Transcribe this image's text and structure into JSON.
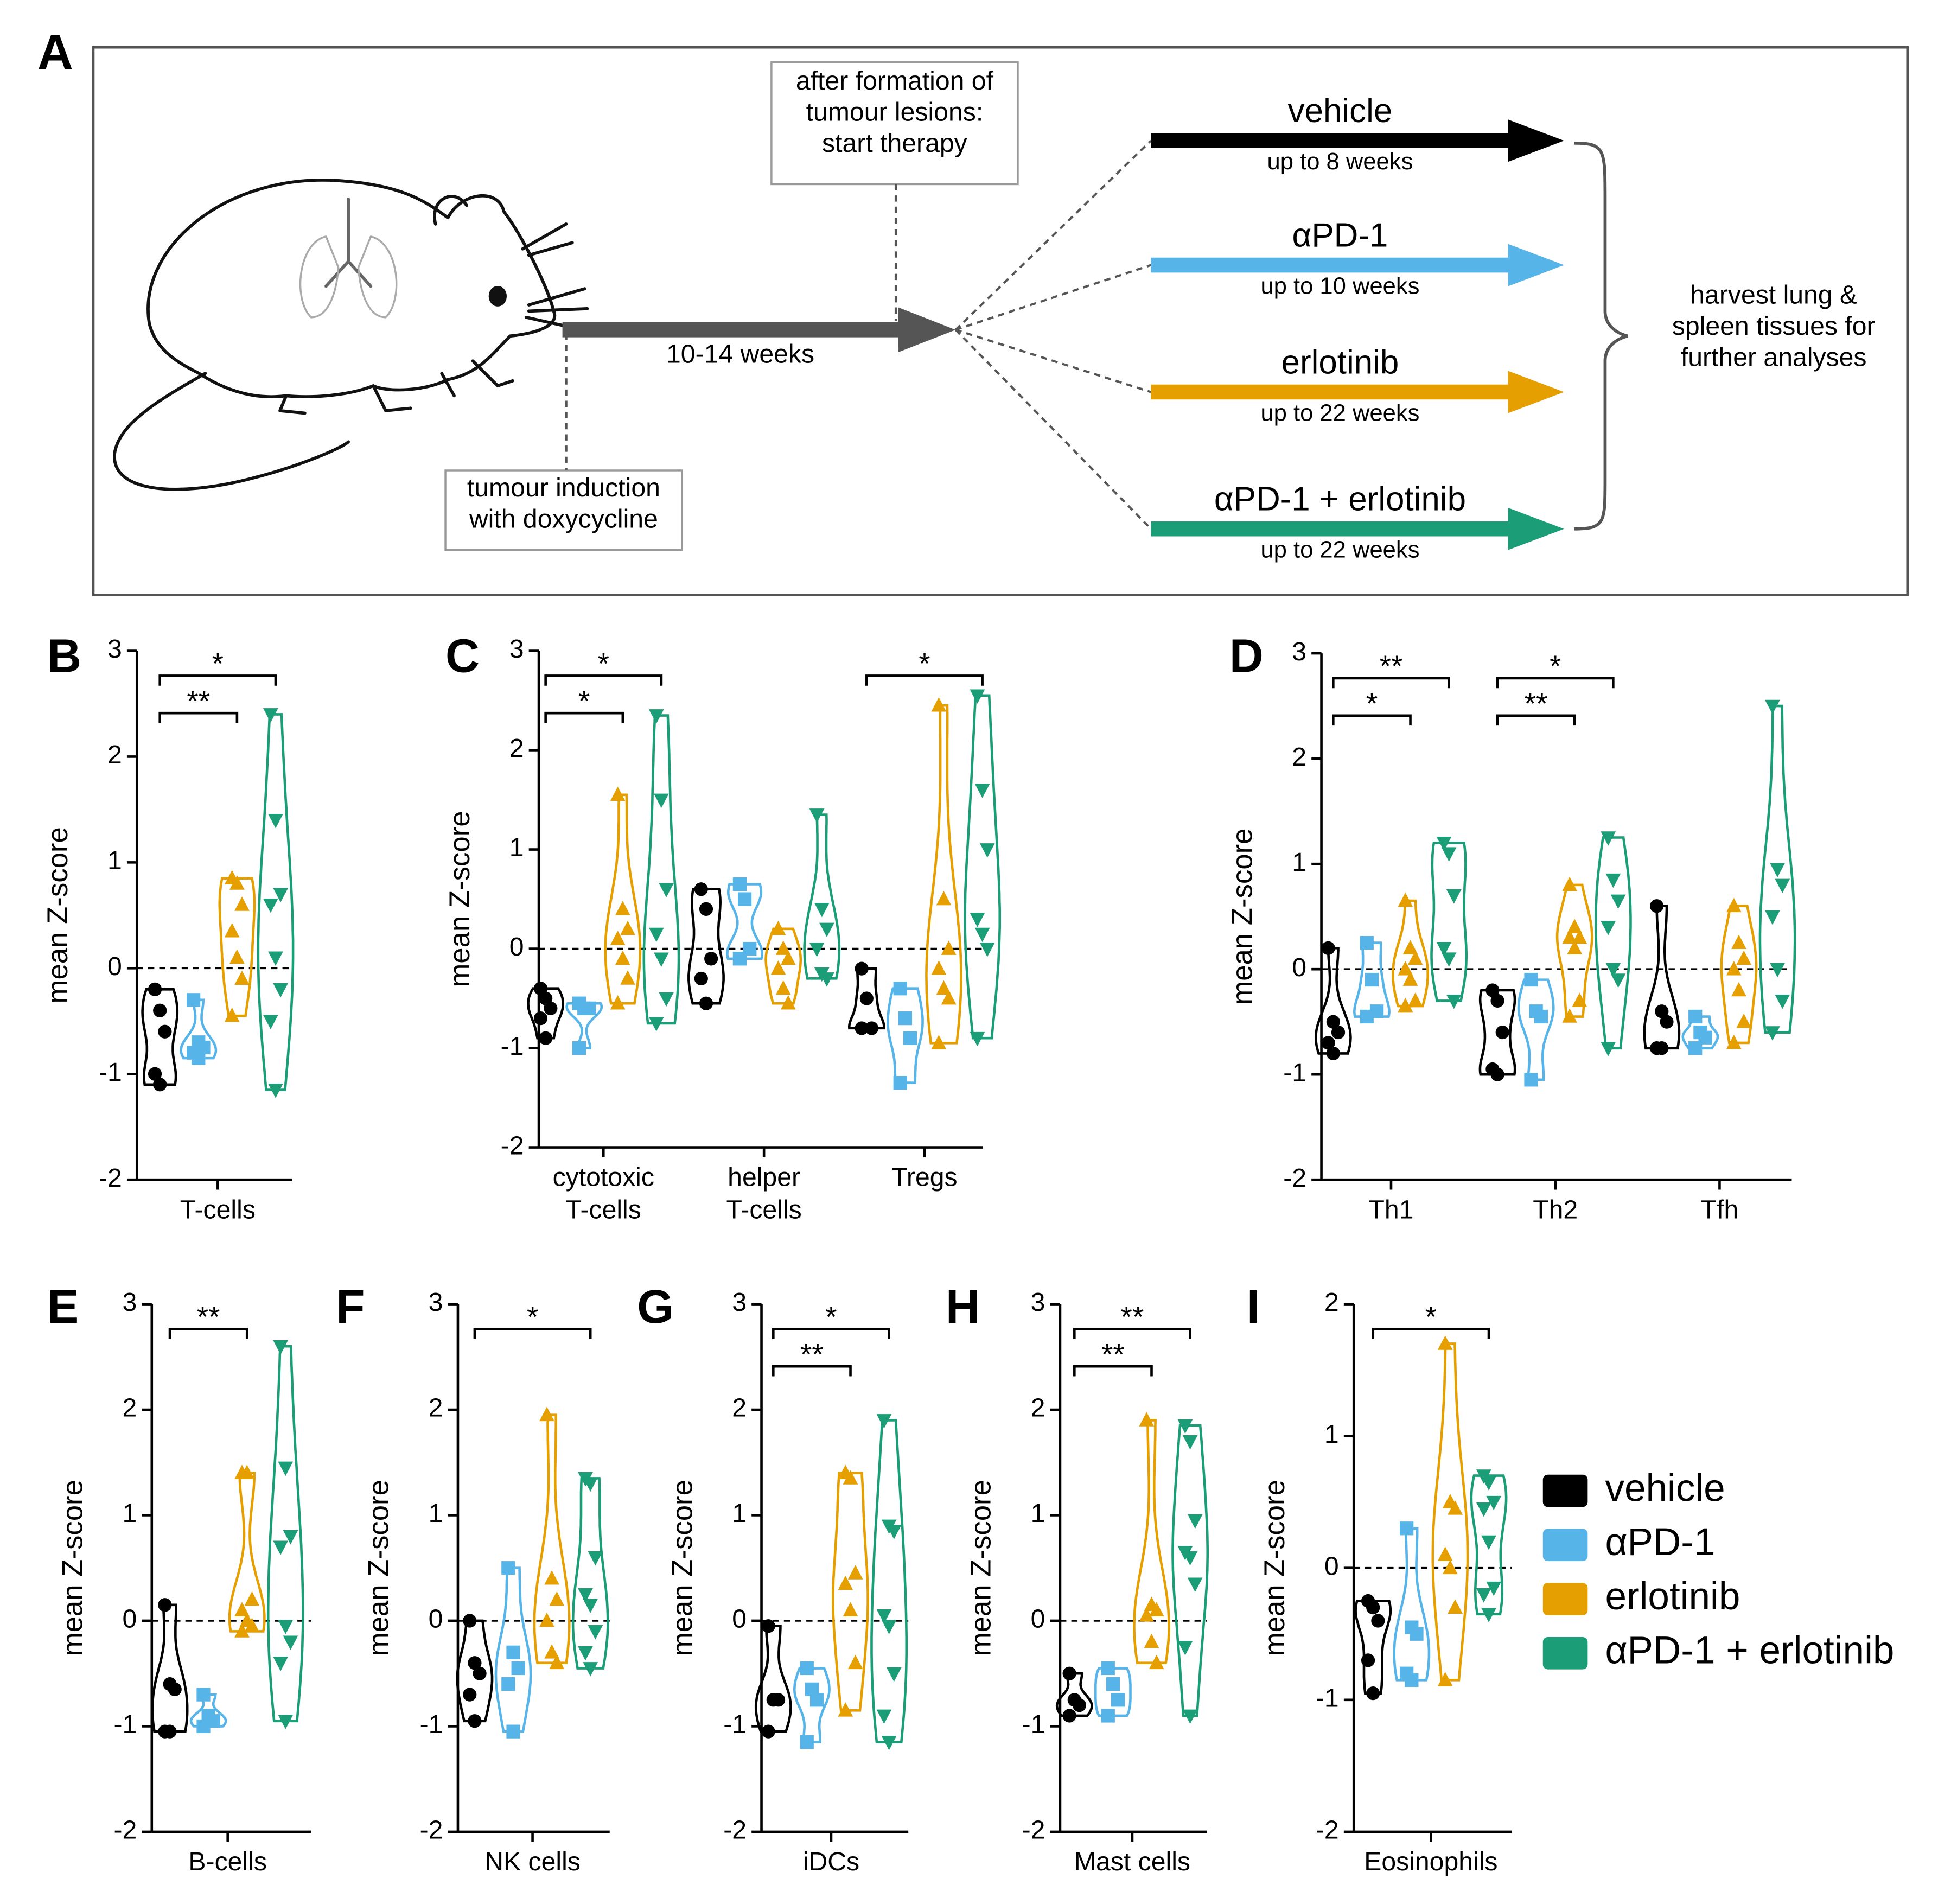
{
  "diagram": {
    "label": "A",
    "start_box": "after formation of\ntumour lesions:\nstart therapy",
    "induction_box": "tumour induction\nwith doxycycline",
    "duration": "10-14 weeks",
    "arms": [
      {
        "name": "vehicle",
        "duration": "up to 8 weeks",
        "color": "#000000"
      },
      {
        "name": "αPD-1",
        "duration": "up to 10 weeks",
        "color": "#56b4e9"
      },
      {
        "name": "erlotinib",
        "duration": "up to 22 weeks",
        "color": "#e69f00"
      },
      {
        "name": "αPD-1 + erlotinib",
        "duration": "up to 22 weeks",
        "color": "#1b9e77"
      }
    ],
    "outcome": "harvest lung &\nspleen tissues for\nfurther analyses"
  },
  "chart_data": [
    {
      "type": "violin",
      "label": "B",
      "ylabel": "mean Z-score",
      "categories": [
        "T-cells"
      ],
      "ylim": [
        -2,
        3
      ],
      "yticks": [
        -2,
        -1,
        0,
        1,
        2,
        3
      ],
      "hline": 0,
      "series": [
        {
          "name": "vehicle",
          "color": "#000000",
          "marker": "circle",
          "values": [
            [
              -0.2,
              -0.4,
              -0.6,
              -1.0,
              -1.1
            ]
          ]
        },
        {
          "name": "αPD-1",
          "color": "#56b4e9",
          "marker": "square",
          "values": [
            [
              -0.3,
              -0.7,
              -0.75,
              -0.8,
              -0.85
            ]
          ]
        },
        {
          "name": "erlotinib",
          "color": "#e69f00",
          "marker": "triangle-up",
          "values": [
            [
              0.85,
              0.8,
              0.6,
              0.35,
              0.1,
              -0.1,
              -0.45
            ]
          ]
        },
        {
          "name": "αPD-1 + erlotinib",
          "color": "#1b9e77",
          "marker": "triangle-down",
          "values": [
            [
              2.4,
              1.4,
              0.7,
              0.6,
              0.1,
              -0.2,
              -0.5,
              -1.15
            ]
          ]
        }
      ],
      "brackets": [
        {
          "category": "T-cells",
          "from": "vehicle",
          "to": "αPD-1 + erlotinib",
          "label": "*"
        },
        {
          "category": "T-cells",
          "from": "vehicle",
          "to": "erlotinib",
          "label": "**"
        }
      ]
    },
    {
      "type": "violin",
      "label": "C",
      "ylabel": "mean Z-score",
      "categories": [
        "cytotoxic\nT-cells",
        "helper\nT-cells",
        "Tregs"
      ],
      "ylim": [
        -2,
        3
      ],
      "yticks": [
        -2,
        -1,
        0,
        1,
        2,
        3
      ],
      "hline": 0,
      "series": [
        {
          "name": "vehicle",
          "color": "#000000",
          "marker": "circle",
          "values": [
            [
              -0.4,
              -0.5,
              -0.6,
              -0.7,
              -0.9
            ],
            [
              0.6,
              0.4,
              -0.1,
              -0.3,
              -0.55
            ],
            [
              -0.2,
              -0.5,
              -0.8,
              -0.8
            ]
          ]
        },
        {
          "name": "αPD-1",
          "color": "#56b4e9",
          "marker": "square",
          "values": [
            [
              -0.55,
              -0.6,
              -0.6,
              -1.0
            ],
            [
              0.65,
              0.5,
              0.0,
              -0.1
            ],
            [
              -0.4,
              -0.7,
              -0.9,
              -1.35
            ]
          ]
        },
        {
          "name": "erlotinib",
          "color": "#e69f00",
          "marker": "triangle-up",
          "values": [
            [
              1.55,
              0.4,
              0.2,
              0.1,
              -0.1,
              -0.3,
              -0.55
            ],
            [
              0.2,
              0.0,
              -0.1,
              -0.2,
              -0.4,
              -0.55
            ],
            [
              2.45,
              0.5,
              0.0,
              -0.2,
              -0.4,
              -0.5,
              -0.95
            ]
          ]
        },
        {
          "name": "αPD-1 + erlotinib",
          "color": "#1b9e77",
          "marker": "triangle-down",
          "values": [
            [
              2.35,
              1.5,
              0.6,
              0.15,
              -0.1,
              -0.5,
              -0.75
            ],
            [
              1.35,
              0.4,
              0.2,
              0.0,
              -0.25,
              -0.3
            ],
            [
              2.55,
              1.6,
              1.0,
              0.3,
              0.15,
              0.0,
              -0.9
            ]
          ]
        }
      ],
      "brackets": [
        {
          "category": "cytotoxic\nT-cells",
          "from": "vehicle",
          "to": "αPD-1 + erlotinib",
          "label": "*"
        },
        {
          "category": "cytotoxic\nT-cells",
          "from": "vehicle",
          "to": "erlotinib",
          "label": "*"
        },
        {
          "category": "Tregs",
          "from": "vehicle",
          "to": "αPD-1 + erlotinib",
          "label": "*"
        }
      ]
    },
    {
      "type": "violin",
      "label": "D",
      "ylabel": "mean Z-score",
      "categories": [
        "Th1",
        "Th2",
        "Tfh"
      ],
      "ylim": [
        -2,
        3
      ],
      "yticks": [
        -2,
        -1,
        0,
        1,
        2,
        3
      ],
      "hline": 0,
      "series": [
        {
          "name": "vehicle",
          "color": "#000000",
          "marker": "circle",
          "values": [
            [
              0.2,
              -0.5,
              -0.6,
              -0.7,
              -0.8
            ],
            [
              -0.2,
              -0.3,
              -0.6,
              -0.95,
              -1.0
            ],
            [
              0.6,
              -0.4,
              -0.5,
              -0.75,
              -0.75
            ]
          ]
        },
        {
          "name": "αPD-1",
          "color": "#56b4e9",
          "marker": "square",
          "values": [
            [
              0.25,
              -0.1,
              -0.4,
              -0.45
            ],
            [
              -0.1,
              -0.4,
              -0.45,
              -1.05
            ],
            [
              -0.45,
              -0.6,
              -0.65,
              -0.75
            ]
          ]
        },
        {
          "name": "erlotinib",
          "color": "#e69f00",
          "marker": "triangle-up",
          "values": [
            [
              0.65,
              0.2,
              0.1,
              0.0,
              -0.1,
              -0.3,
              -0.35
            ],
            [
              0.8,
              0.4,
              0.3,
              0.3,
              0.2,
              -0.3,
              -0.45
            ],
            [
              0.6,
              0.25,
              0.1,
              0.0,
              -0.2,
              -0.5,
              -0.7
            ]
          ]
        },
        {
          "name": "αPD-1 + erlotinib",
          "color": "#1b9e77",
          "marker": "triangle-down",
          "values": [
            [
              1.2,
              1.1,
              0.7,
              0.2,
              0.1,
              -0.3
            ],
            [
              1.25,
              0.85,
              0.65,
              0.4,
              0.0,
              -0.1,
              -0.75
            ],
            [
              2.5,
              0.95,
              0.8,
              0.5,
              0.0,
              -0.3,
              -0.6
            ]
          ]
        }
      ],
      "brackets": [
        {
          "category": "Th1",
          "from": "vehicle",
          "to": "αPD-1 + erlotinib",
          "label": "**"
        },
        {
          "category": "Th1",
          "from": "vehicle",
          "to": "erlotinib",
          "label": "*"
        },
        {
          "category": "Th2",
          "from": "vehicle",
          "to": "αPD-1 + erlotinib",
          "label": "*"
        },
        {
          "category": "Th2",
          "from": "vehicle",
          "to": "erlotinib",
          "label": "**"
        }
      ]
    },
    {
      "type": "violin",
      "label": "E",
      "ylabel": "mean Z-score",
      "categories": [
        "B-cells"
      ],
      "ylim": [
        -2,
        3
      ],
      "yticks": [
        -2,
        -1,
        0,
        1,
        2,
        3
      ],
      "hline": 0,
      "series": [
        {
          "name": "vehicle",
          "color": "#000000",
          "marker": "circle",
          "values": [
            [
              0.15,
              -0.6,
              -0.65,
              -1.05,
              -1.05
            ]
          ]
        },
        {
          "name": "αPD-1",
          "color": "#56b4e9",
          "marker": "square",
          "values": [
            [
              -0.7,
              -0.9,
              -0.95,
              -1.0
            ]
          ]
        },
        {
          "name": "erlotinib",
          "color": "#e69f00",
          "marker": "triangle-up",
          "values": [
            [
              1.4,
              1.4,
              0.2,
              0.1,
              0.0,
              -0.05,
              -0.1
            ]
          ]
        },
        {
          "name": "αPD-1 + erlotinib",
          "color": "#1b9e77",
          "marker": "triangle-down",
          "values": [
            [
              2.6,
              1.45,
              0.8,
              0.7,
              -0.05,
              -0.2,
              -0.4,
              -0.95
            ]
          ]
        }
      ],
      "brackets": [
        {
          "category": "B-cells",
          "from": "vehicle",
          "to": "erlotinib",
          "label": "**"
        }
      ]
    },
    {
      "type": "violin",
      "label": "F",
      "ylabel": "mean Z-score",
      "categories": [
        "NK cells"
      ],
      "ylim": [
        -2,
        3
      ],
      "yticks": [
        -2,
        -1,
        0,
        1,
        2,
        3
      ],
      "hline": 0,
      "series": [
        {
          "name": "vehicle",
          "color": "#000000",
          "marker": "circle",
          "values": [
            [
              0.0,
              -0.4,
              -0.5,
              -0.7,
              -0.95
            ]
          ]
        },
        {
          "name": "αPD-1",
          "color": "#56b4e9",
          "marker": "square",
          "values": [
            [
              0.5,
              -0.3,
              -0.45,
              -0.6,
              -1.05
            ]
          ]
        },
        {
          "name": "erlotinib",
          "color": "#e69f00",
          "marker": "triangle-up",
          "values": [
            [
              1.95,
              0.4,
              0.2,
              0.0,
              -0.3,
              -0.4
            ]
          ]
        },
        {
          "name": "αPD-1 + erlotinib",
          "color": "#1b9e77",
          "marker": "triangle-down",
          "values": [
            [
              1.35,
              1.3,
              0.6,
              0.25,
              0.15,
              -0.1,
              -0.3,
              -0.45
            ]
          ]
        }
      ],
      "brackets": [
        {
          "category": "NK cells",
          "from": "vehicle",
          "to": "αPD-1 + erlotinib",
          "label": "*"
        }
      ]
    },
    {
      "type": "violin",
      "label": "G",
      "ylabel": "mean Z-score",
      "categories": [
        "iDCs"
      ],
      "ylim": [
        -2,
        3
      ],
      "yticks": [
        -2,
        -1,
        0,
        1,
        2,
        3
      ],
      "hline": 0,
      "series": [
        {
          "name": "vehicle",
          "color": "#000000",
          "marker": "circle",
          "values": [
            [
              -0.05,
              -0.75,
              -0.75,
              -1.05
            ]
          ]
        },
        {
          "name": "αPD-1",
          "color": "#56b4e9",
          "marker": "square",
          "values": [
            [
              -0.45,
              -0.65,
              -0.75,
              -1.15
            ]
          ]
        },
        {
          "name": "erlotinib",
          "color": "#e69f00",
          "marker": "triangle-up",
          "values": [
            [
              1.4,
              1.35,
              0.45,
              0.35,
              0.1,
              -0.4,
              -0.85
            ]
          ]
        },
        {
          "name": "αPD-1 + erlotinib",
          "color": "#1b9e77",
          "marker": "triangle-down",
          "values": [
            [
              1.9,
              0.9,
              0.85,
              0.05,
              -0.05,
              -0.5,
              -0.9,
              -1.15
            ]
          ]
        }
      ],
      "brackets": [
        {
          "category": "iDCs",
          "from": "vehicle",
          "to": "αPD-1 + erlotinib",
          "label": "*"
        },
        {
          "category": "iDCs",
          "from": "vehicle",
          "to": "erlotinib",
          "label": "**"
        }
      ]
    },
    {
      "type": "violin",
      "label": "H",
      "ylabel": "mean Z-score",
      "categories": [
        "Mast cells"
      ],
      "ylim": [
        -2,
        3
      ],
      "yticks": [
        -2,
        -1,
        0,
        1,
        2,
        3
      ],
      "hline": 0,
      "series": [
        {
          "name": "vehicle",
          "color": "#000000",
          "marker": "circle",
          "values": [
            [
              -0.5,
              -0.75,
              -0.8,
              -0.9
            ]
          ]
        },
        {
          "name": "αPD-1",
          "color": "#56b4e9",
          "marker": "square",
          "values": [
            [
              -0.45,
              -0.6,
              -0.75,
              -0.9
            ]
          ]
        },
        {
          "name": "erlotinib",
          "color": "#e69f00",
          "marker": "triangle-up",
          "values": [
            [
              1.9,
              0.15,
              0.1,
              0.05,
              -0.2,
              -0.4
            ]
          ]
        },
        {
          "name": "αPD-1 + erlotinib",
          "color": "#1b9e77",
          "marker": "triangle-down",
          "values": [
            [
              1.85,
              1.7,
              0.95,
              0.65,
              0.6,
              0.35,
              -0.25,
              -0.9
            ]
          ]
        }
      ],
      "brackets": [
        {
          "category": "Mast cells",
          "from": "vehicle",
          "to": "αPD-1 + erlotinib",
          "label": "**"
        },
        {
          "category": "Mast cells",
          "from": "vehicle",
          "to": "erlotinib",
          "label": "**"
        }
      ]
    },
    {
      "type": "violin",
      "label": "I",
      "ylabel": "mean Z-score",
      "categories": [
        "Eosinophils"
      ],
      "ylim": [
        -2,
        2
      ],
      "yticks": [
        -2,
        -1,
        0,
        1,
        2
      ],
      "hline": 0,
      "series": [
        {
          "name": "vehicle",
          "color": "#000000",
          "marker": "circle",
          "values": [
            [
              -0.25,
              -0.3,
              -0.4,
              -0.7,
              -0.95
            ]
          ]
        },
        {
          "name": "αPD-1",
          "color": "#56b4e9",
          "marker": "square",
          "values": [
            [
              0.3,
              -0.45,
              -0.5,
              -0.8,
              -0.85
            ]
          ]
        },
        {
          "name": "erlotinib",
          "color": "#e69f00",
          "marker": "triangle-up",
          "values": [
            [
              1.7,
              0.5,
              0.45,
              0.1,
              0.0,
              -0.3,
              -0.85
            ]
          ]
        },
        {
          "name": "αPD-1 + erlotinib",
          "color": "#1b9e77",
          "marker": "triangle-down",
          "values": [
            [
              0.7,
              0.65,
              0.5,
              0.45,
              0.2,
              -0.15,
              -0.2,
              -0.35
            ]
          ]
        }
      ],
      "brackets": [
        {
          "category": "Eosinophils",
          "from": "vehicle",
          "to": "αPD-1 + erlotinib",
          "label": "*"
        }
      ]
    }
  ]
}
